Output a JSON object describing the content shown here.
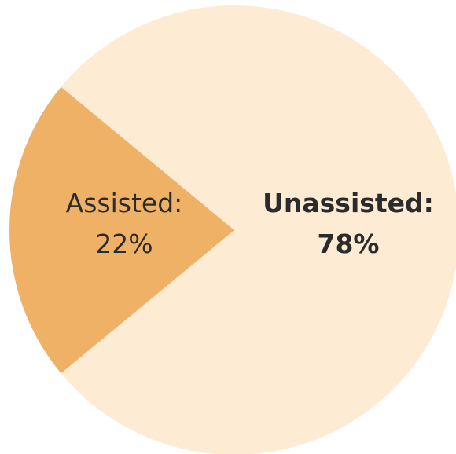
{
  "chart_data": {
    "type": "pie",
    "title": "",
    "slices": [
      {
        "label": "Unassisted:",
        "value": 78,
        "value_text": "78%",
        "color": "#fdebd3",
        "label_weight": "bold"
      },
      {
        "label": "Assisted:",
        "value": 22,
        "value_text": "22%",
        "color": "#efb166",
        "label_weight": "normal"
      }
    ],
    "start_angle_deg": 141,
    "legend": "none"
  }
}
